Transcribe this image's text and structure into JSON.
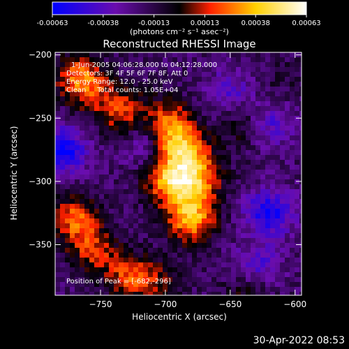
{
  "colorbar": {
    "tick_labels": [
      "-0.00063",
      "-0.00038",
      "-0.00013",
      "0.00013",
      "0.00038",
      "0.00063"
    ],
    "unit_label": "(photons cm⁻² s⁻¹ asec⁻²)",
    "colors": [
      "#0000ff",
      "#6a0dad",
      "#000000",
      "#ff2000",
      "#ffd000",
      "#ffffff"
    ]
  },
  "chart_data": {
    "type": "heatmap",
    "title": "Reconstructed RHESSI Image",
    "xlabel": "Heliocentric X (arcsec)",
    "ylabel": "Heliocentric Y (arcsec)",
    "xlim": [
      -785,
      -595
    ],
    "ylim": [
      -390,
      -198
    ],
    "x_ticks": [
      -750,
      -700,
      -650,
      -600
    ],
    "y_ticks": [
      -200,
      -250,
      -300,
      -350
    ],
    "zlim": [
      -0.00063,
      0.00063
    ],
    "annotations": [
      "1-Jun-2005 04:06:28.000 to 04:12:28.000",
      "Detectors: 3F 4F 5F 6F 7F 8F, Att 0",
      "Energy Range: 12.0 - 25.0 keV",
      "Clean     Total counts: 1.05E+04"
    ],
    "peak_label": "Position of Peak = [-682,-296]",
    "peak_position": [
      -682,
      -296
    ],
    "sources": [
      {
        "x": -682,
        "y": -296,
        "amplitude": 0.00063
      },
      {
        "x": -690,
        "y": -268,
        "amplitude": 0.00045
      },
      {
        "x": -680,
        "y": -330,
        "amplitude": 0.0005
      },
      {
        "x": -700,
        "y": -250,
        "amplitude": 0.0003
      },
      {
        "x": -735,
        "y": -245,
        "amplitude": 0.00035
      },
      {
        "x": -760,
        "y": -225,
        "amplitude": 0.0003
      },
      {
        "x": -770,
        "y": -330,
        "amplitude": 0.0004
      },
      {
        "x": -755,
        "y": -355,
        "amplitude": 0.0003
      },
      {
        "x": -728,
        "y": -375,
        "amplitude": 0.00033
      },
      {
        "x": -700,
        "y": -300,
        "amplitude": 0.00025
      },
      {
        "x": -640,
        "y": -255,
        "amplitude": 0.0002
      },
      {
        "x": -635,
        "y": -385,
        "amplitude": 0.00025
      },
      {
        "x": -705,
        "y": -380,
        "amplitude": 0.0002
      },
      {
        "x": -610,
        "y": -220,
        "amplitude": 8e-05
      },
      {
        "x": -770,
        "y": -215,
        "amplitude": 0.00025
      }
    ],
    "negative_regions": [
      {
        "x": -780,
        "y": -275,
        "amplitude": -0.00045
      },
      {
        "x": -620,
        "y": -325,
        "amplitude": -0.0004
      },
      {
        "x": -630,
        "y": -370,
        "amplitude": -0.0003
      },
      {
        "x": -620,
        "y": -255,
        "amplitude": -0.00025
      },
      {
        "x": -715,
        "y": -270,
        "amplitude": -0.0002
      },
      {
        "x": -650,
        "y": -230,
        "amplitude": -0.00022
      }
    ]
  },
  "footer": {
    "timestamp": "30-Apr-2022 08:53"
  }
}
